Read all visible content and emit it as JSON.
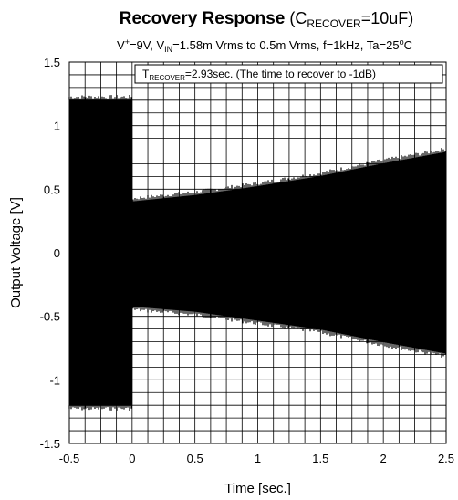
{
  "chart_data": {
    "type": "line",
    "title": {
      "main": "Recovery Response",
      "open": " (C",
      "sub": "RECOVER",
      "close": "=10uF)"
    },
    "subtitle": {
      "v_plus": "V",
      "v_plus_sup": "+",
      "part1": "=9V, V",
      "vin_sub": "IN",
      "part2": "=1.58m Vrms  to 0.5m Vrms,  f=1kHz, Ta=25",
      "deg_sup": "o",
      "part3": "C"
    },
    "annotation": {
      "t": "T",
      "t_sub": "RECOVER",
      "text": "=2.93sec. (The time to recover to -1dB)"
    },
    "xlabel": "Time [sec.]",
    "ylabel": "Output Voltage [V]",
    "xlim": [
      -0.5,
      2.5
    ],
    "ylim": [
      -1.5,
      1.5
    ],
    "x_ticks": [
      "-0.5",
      "0",
      "0.5",
      "1",
      "1.5",
      "2",
      "2.5"
    ],
    "y_ticks": [
      "1.5",
      "1",
      "0.5",
      "0",
      "-0.5",
      "-1",
      "-1.5"
    ],
    "grid": true,
    "series": [
      {
        "color": "#000000",
        "envelope_upper": [
          {
            "x": -0.5,
            "y": 1.2
          },
          {
            "x": -0.001,
            "y": 1.2
          },
          {
            "x": 0.0,
            "y": 0.4
          },
          {
            "x": 0.5,
            "y": 0.45
          },
          {
            "x": 1.0,
            "y": 0.52
          },
          {
            "x": 1.5,
            "y": 0.6
          },
          {
            "x": 2.0,
            "y": 0.7
          },
          {
            "x": 2.5,
            "y": 0.79
          }
        ],
        "envelope_lower": [
          {
            "x": -0.5,
            "y": -1.2
          },
          {
            "x": -0.001,
            "y": -1.2
          },
          {
            "x": 0.0,
            "y": -0.42
          },
          {
            "x": 0.5,
            "y": -0.46
          },
          {
            "x": 1.0,
            "y": -0.53
          },
          {
            "x": 1.5,
            "y": -0.6
          },
          {
            "x": 2.0,
            "y": -0.7
          },
          {
            "x": 2.5,
            "y": -0.79
          }
        ]
      }
    ]
  }
}
